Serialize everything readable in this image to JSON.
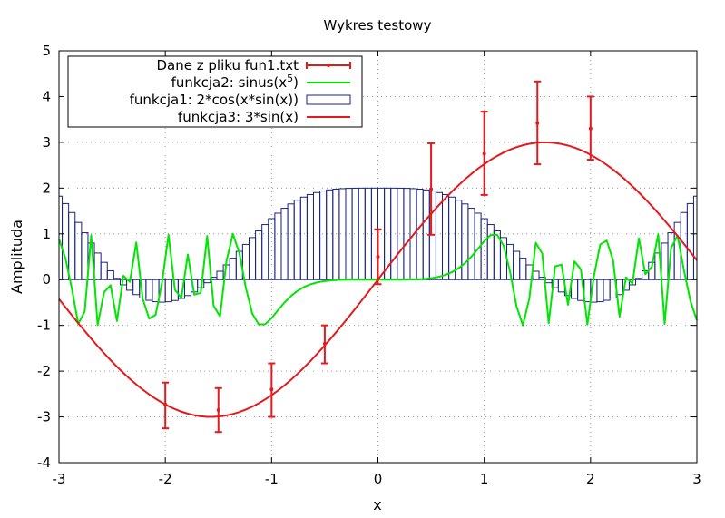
{
  "chart_data": {
    "type": "line",
    "title": "Wykres testowy",
    "xlabel": "x",
    "ylabel": "Amplituda",
    "xlim": [
      -3,
      3
    ],
    "ylim": [
      -4,
      5
    ],
    "x_ticks": [
      -3,
      -2,
      -1,
      0,
      1,
      2,
      3
    ],
    "y_ticks": [
      -4,
      -3,
      -2,
      -1,
      0,
      1,
      2,
      3,
      4,
      5
    ],
    "x_tick_labels": [
      "-3",
      "-2",
      "-1",
      "0",
      "1",
      "2",
      "3"
    ],
    "y_tick_labels": [
      "-4",
      "-3",
      "-2",
      "-1",
      "0",
      "1",
      "2",
      "3",
      "4",
      "5"
    ],
    "grid": true,
    "legend_position": "top-left",
    "legend": [
      {
        "label": "Dane z pliku fun1.txt",
        "color": "#e41a1c",
        "style": "errorbars"
      },
      {
        "label": "funkcja2: sinus(x",
        "label_sup": "5",
        "label_end": ")",
        "color": "#00e600",
        "style": "line"
      },
      {
        "label": "funkcja1: 2*cos(x*sin(x))",
        "color": "#1a237e",
        "style": "boxes"
      },
      {
        "label": "funkcja3: 3*sin(x)",
        "color": "#e41a1c",
        "style": "line"
      }
    ],
    "series": [
      {
        "name": "Dane z pliku fun1.txt",
        "type": "errorbars",
        "color": "#e41a1c",
        "points": [
          {
            "x": -2.0,
            "y": -2.73,
            "ylow": -3.25,
            "yhigh": -2.25
          },
          {
            "x": -1.5,
            "y": -2.85,
            "ylow": -3.33,
            "yhigh": -2.37
          },
          {
            "x": -1.0,
            "y": -2.4,
            "ylow": -3.0,
            "yhigh": -1.83
          },
          {
            "x": -0.5,
            "y": -1.4,
            "ylow": -1.83,
            "yhigh": -1.0
          },
          {
            "x": 0.0,
            "y": 0.5,
            "ylow": -0.1,
            "yhigh": 1.1
          },
          {
            "x": 0.5,
            "y": 1.98,
            "ylow": 0.98,
            "yhigh": 2.98
          },
          {
            "x": 1.0,
            "y": 2.75,
            "ylow": 1.85,
            "yhigh": 3.67
          },
          {
            "x": 1.5,
            "y": 3.42,
            "ylow": 2.52,
            "yhigh": 4.33
          },
          {
            "x": 2.0,
            "y": 3.3,
            "ylow": 2.62,
            "yhigh": 4.0
          }
        ]
      },
      {
        "name": "funkcja2: sinus(x5)",
        "type": "line",
        "color": "#00e600",
        "function": "sin(x^5)",
        "samples": 100
      },
      {
        "name": "funkcja1: 2*cos(x*sin(x))",
        "type": "boxes",
        "color": "#1a237e",
        "function": "2*cos(x*sin(x))",
        "samples": 100
      },
      {
        "name": "funkcja3: 3*sin(x)",
        "type": "line",
        "color": "#e41a1c",
        "function": "3*sin(x)",
        "samples": 100
      }
    ]
  }
}
